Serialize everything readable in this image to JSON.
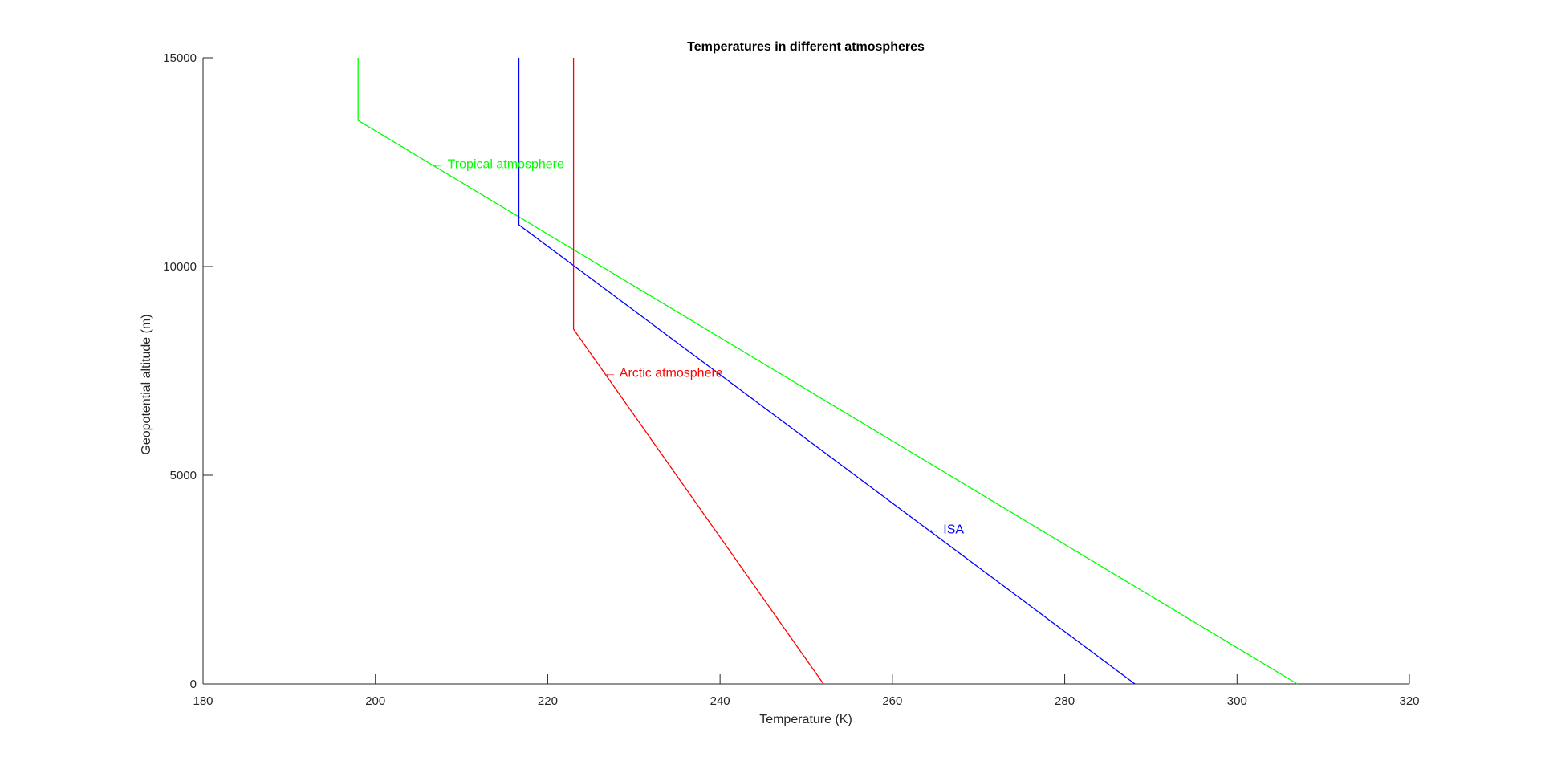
{
  "chart_data": {
    "type": "line",
    "title": "Temperatures in different atmospheres",
    "xlabel": "Temperature (K)",
    "ylabel": "Geopotential altitude (m)",
    "xlim": [
      180,
      320
    ],
    "ylim": [
      0,
      15000
    ],
    "xticks": [
      180,
      200,
      220,
      240,
      260,
      280,
      300,
      320
    ],
    "yticks": [
      0,
      5000,
      10000,
      15000
    ],
    "grid": false,
    "series": [
      {
        "color": "#00ff00",
        "x": [
          307.0,
          198.0,
          198.0
        ],
        "y": [
          0,
          13500,
          15000
        ]
      },
      {
        "color": "#0000ff",
        "x": [
          288.15,
          216.65,
          216.65
        ],
        "y": [
          0,
          11000,
          15000
        ]
      },
      {
        "color": "#ff0000",
        "x": [
          252.0,
          223.0,
          223.0
        ],
        "y": [
          0,
          8500,
          15000
        ]
      }
    ],
    "annotations": [
      {
        "text": "← Tropical atmosphere",
        "x": 206.5,
        "y": 12450,
        "color": "#00ff00"
      },
      {
        "text": "← Arctic atmosphere",
        "x": 226.5,
        "y": 7450,
        "color": "#ff0000"
      },
      {
        "text": "← ISA",
        "x": 264.0,
        "y": 3700,
        "color": "#0000ff"
      }
    ]
  }
}
